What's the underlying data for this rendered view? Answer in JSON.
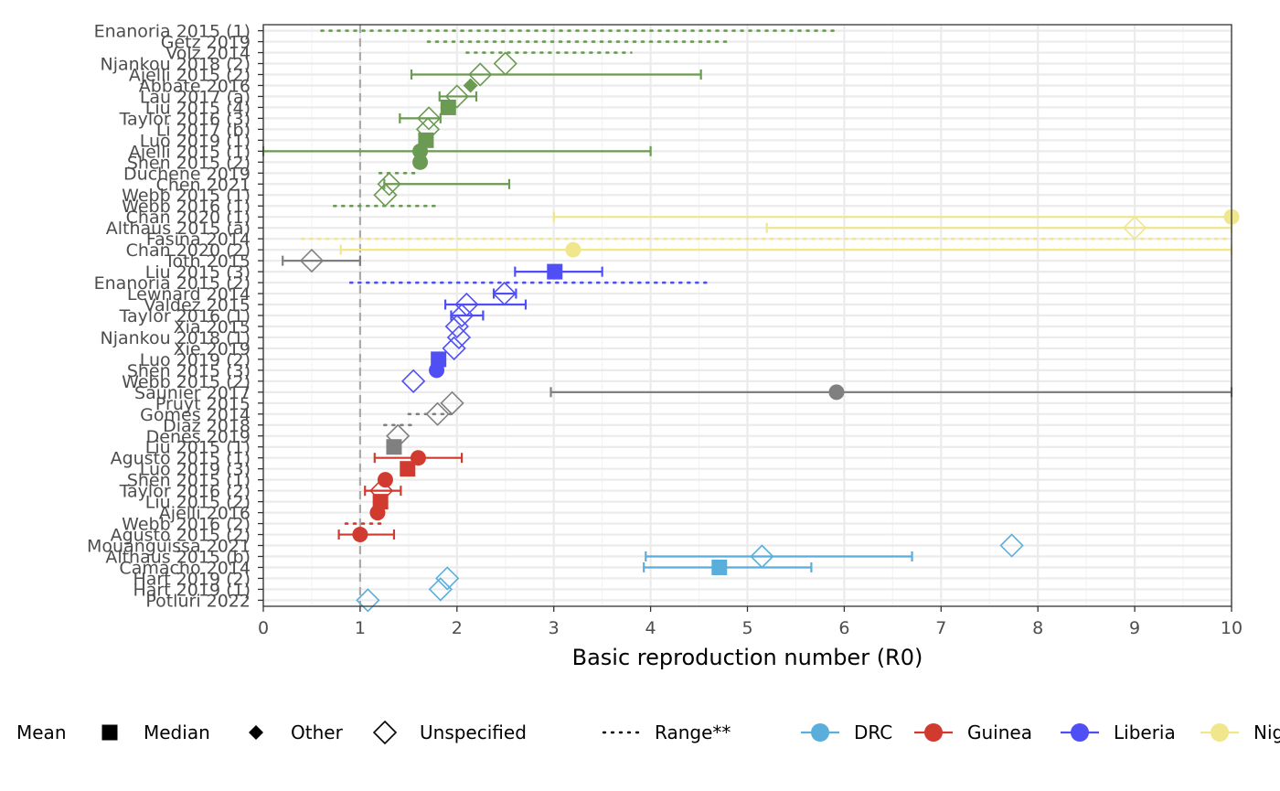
{
  "chart_data": {
    "type": "forest",
    "xlabel": "Basic reproduction number (R0)",
    "xlim": [
      0,
      10
    ],
    "x_ticks": [
      0,
      1,
      2,
      3,
      4,
      5,
      6,
      7,
      8,
      9,
      10
    ],
    "reference_line": 1,
    "grid": true,
    "legend_position": "bottom",
    "colors": {
      "DRC": "#5aaedc",
      "Guinea": "#d13b2f",
      "Liberia": "#4f4ff5",
      "Nigeria": "#f0e68c",
      "Sierra Leone": "#6b9a52",
      "Other": "#808080"
    },
    "legend": {
      "types": [
        {
          "label": "Mean",
          "symbol": "circle"
        },
        {
          "label": "Median",
          "symbol": "square"
        },
        {
          "label": "Other",
          "symbol": "diamond-filled"
        },
        {
          "label": "Unspecified",
          "symbol": "diamond-open"
        }
      ],
      "range_label": "Range**",
      "countries": [
        {
          "label": "DRC",
          "color": "#5aaedc"
        },
        {
          "label": "Guinea",
          "color": "#d13b2f"
        },
        {
          "label": "Liberia",
          "color": "#4f4ff5"
        },
        {
          "label": "Nig",
          "color": "#f0e68c"
        }
      ]
    },
    "studies": [
      {
        "label": "Enanoria 2015 (1)",
        "group": "Sierra Leone",
        "value": null,
        "type": null,
        "low": 0.6,
        "high": 5.9,
        "interval": "range"
      },
      {
        "label": "Getz 2019",
        "group": "Sierra Leone",
        "value": null,
        "type": null,
        "low": 1.7,
        "high": 4.8,
        "interval": "range"
      },
      {
        "label": "Volz 2014",
        "group": "Sierra Leone",
        "value": null,
        "type": null,
        "low": 2.1,
        "high": 3.8,
        "interval": "range"
      },
      {
        "label": "Njankou 2018 (2)",
        "group": "Sierra Leone",
        "value": 2.5,
        "type": "unspecified",
        "low": null,
        "high": null,
        "interval": null
      },
      {
        "label": "Ajelli 2015 (2)",
        "group": "Sierra Leone",
        "value": 2.24,
        "type": "unspecified",
        "low": 1.53,
        "high": 4.52,
        "interval": "ci"
      },
      {
        "label": "Abbate 2016",
        "group": "Sierra Leone",
        "value": 2.14,
        "type": "other",
        "low": null,
        "high": null,
        "interval": null
      },
      {
        "label": "Lau 2017 (a)",
        "group": "Sierra Leone",
        "value": 2.0,
        "type": "unspecified",
        "low": 1.82,
        "high": 2.2,
        "interval": "ci"
      },
      {
        "label": "Liu 2015 (4)",
        "group": "Sierra Leone",
        "value": 1.91,
        "type": "median",
        "low": null,
        "high": null,
        "interval": null
      },
      {
        "label": "Taylor 2016 (3)",
        "group": "Sierra Leone",
        "value": 1.71,
        "type": "unspecified",
        "low": 1.41,
        "high": 1.83,
        "interval": "ci"
      },
      {
        "label": "Li 2017 (b)",
        "group": "Sierra Leone",
        "value": 1.7,
        "type": "unspecified",
        "low": null,
        "high": null,
        "interval": null
      },
      {
        "label": "Luo 2019 (1)",
        "group": "Sierra Leone",
        "value": 1.68,
        "type": "median",
        "low": null,
        "high": null,
        "interval": null
      },
      {
        "label": "Ajelli 2015 (1)",
        "group": "Sierra Leone",
        "value": 1.62,
        "type": "mean",
        "low": 0.0,
        "high": 4.0,
        "interval": "ci"
      },
      {
        "label": "Shen 2015 (2)",
        "group": "Sierra Leone",
        "value": 1.62,
        "type": "mean",
        "low": null,
        "high": null,
        "interval": null
      },
      {
        "label": "Duchene 2019",
        "group": "Sierra Leone",
        "value": null,
        "type": null,
        "low": 1.2,
        "high": 1.6,
        "interval": "range"
      },
      {
        "label": "Chen 2021",
        "group": "Sierra Leone",
        "value": 1.3,
        "type": "unspecified",
        "low": 1.25,
        "high": 2.54,
        "interval": "ci"
      },
      {
        "label": "Webb 2015 (1)",
        "group": "Sierra Leone",
        "value": 1.26,
        "type": "unspecified",
        "low": null,
        "high": null,
        "interval": null
      },
      {
        "label": "Webb 2016 (1)",
        "group": "Sierra Leone",
        "value": null,
        "type": null,
        "low": 0.73,
        "high": 1.77,
        "interval": "range"
      },
      {
        "label": "Chan 2020 (1)",
        "group": "Nigeria",
        "value": 10.0,
        "type": "mean",
        "low": 3.0,
        "high": 10.0,
        "interval": "ci"
      },
      {
        "label": "Althaus 2015 (a)",
        "group": "Nigeria",
        "value": 9.0,
        "type": "unspecified",
        "low": 5.2,
        "high": 10.0,
        "interval": "ci"
      },
      {
        "label": "Fasina 2014",
        "group": "Nigeria",
        "value": null,
        "type": null,
        "low": 0.4,
        "high": 10.0,
        "interval": "range"
      },
      {
        "label": "Chan 2020 (2)",
        "group": "Nigeria",
        "value": 3.2,
        "type": "mean",
        "low": 0.8,
        "high": 10.0,
        "interval": "ci"
      },
      {
        "label": "Toth 2015",
        "group": "Other",
        "value": 0.5,
        "type": "unspecified",
        "low": 0.2,
        "high": 1.0,
        "interval": "ci"
      },
      {
        "label": "Liu 2015 (3)",
        "group": "Liberia",
        "value": 3.01,
        "type": "median",
        "low": 2.6,
        "high": 3.5,
        "interval": "ci"
      },
      {
        "label": "Enanoria 2015 (2)",
        "group": "Liberia",
        "value": null,
        "type": null,
        "low": 0.9,
        "high": 4.6,
        "interval": "range"
      },
      {
        "label": "Lewnard 2014",
        "group": "Liberia",
        "value": 2.49,
        "type": "unspecified",
        "low": 2.38,
        "high": 2.61,
        "interval": "ci"
      },
      {
        "label": "Valdez 2015",
        "group": "Liberia",
        "value": 2.1,
        "type": "unspecified",
        "low": 1.88,
        "high": 2.71,
        "interval": "ci"
      },
      {
        "label": "Taylor 2016 (1)",
        "group": "Liberia",
        "value": 2.05,
        "type": "unspecified",
        "low": 1.94,
        "high": 2.27,
        "interval": "ci"
      },
      {
        "label": "Xia 2015",
        "group": "Liberia",
        "value": 2.0,
        "type": "unspecified",
        "low": null,
        "high": null,
        "interval": null
      },
      {
        "label": "Njankou 2018 (1)",
        "group": "Liberia",
        "value": 2.02,
        "type": "unspecified",
        "low": null,
        "high": null,
        "interval": null
      },
      {
        "label": "Xie 2019",
        "group": "Liberia",
        "value": 1.97,
        "type": "unspecified",
        "low": null,
        "high": null,
        "interval": null
      },
      {
        "label": "Luo 2019 (2)",
        "group": "Liberia",
        "value": 1.81,
        "type": "median",
        "low": null,
        "high": null,
        "interval": null
      },
      {
        "label": "Shen 2015 (3)",
        "group": "Liberia",
        "value": 1.79,
        "type": "mean",
        "low": null,
        "high": null,
        "interval": null
      },
      {
        "label": "Webb 2015 (2)",
        "group": "Liberia",
        "value": 1.55,
        "type": "unspecified",
        "low": null,
        "high": null,
        "interval": null
      },
      {
        "label": "Saunier 2017",
        "group": "Other",
        "value": 5.92,
        "type": "mean",
        "low": 2.97,
        "high": 10.0,
        "interval": "ci"
      },
      {
        "label": "Pruyt 2015",
        "group": "Other",
        "value": 1.95,
        "type": "unspecified",
        "low": null,
        "high": null,
        "interval": null
      },
      {
        "label": "Gomes 2014",
        "group": "Other",
        "value": 1.8,
        "type": "unspecified",
        "low": 1.5,
        "high": 2.0,
        "interval": "range"
      },
      {
        "label": "Diaz 2018",
        "group": "Other",
        "value": null,
        "type": null,
        "low": 1.25,
        "high": 1.55,
        "interval": "range"
      },
      {
        "label": "Denes 2019",
        "group": "Other",
        "value": 1.39,
        "type": "unspecified",
        "low": null,
        "high": null,
        "interval": null
      },
      {
        "label": "Liu 2015 (1)",
        "group": "Other",
        "value": 1.35,
        "type": "median",
        "low": null,
        "high": null,
        "interval": null
      },
      {
        "label": "Agusto 2015 (1)",
        "group": "Guinea",
        "value": 1.6,
        "type": "mean",
        "low": 1.15,
        "high": 2.05,
        "interval": "ci"
      },
      {
        "label": "Luo 2019 (3)",
        "group": "Guinea",
        "value": 1.49,
        "type": "median",
        "low": null,
        "high": null,
        "interval": null
      },
      {
        "label": "Shen 2015 (1)",
        "group": "Guinea",
        "value": 1.26,
        "type": "mean",
        "low": null,
        "high": null,
        "interval": null
      },
      {
        "label": "Taylor 2016 (2)",
        "group": "Guinea",
        "value": 1.22,
        "type": "unspecified",
        "low": 1.05,
        "high": 1.42,
        "interval": "ci"
      },
      {
        "label": "Liu 2015 (2)",
        "group": "Guinea",
        "value": 1.21,
        "type": "median",
        "low": null,
        "high": null,
        "interval": null
      },
      {
        "label": "Ajelli 2016",
        "group": "Guinea",
        "value": 1.18,
        "type": "mean",
        "low": null,
        "high": null,
        "interval": null
      },
      {
        "label": "Webb 2016 (2)",
        "group": "Guinea",
        "value": null,
        "type": null,
        "low": 0.85,
        "high": 1.22,
        "interval": "range"
      },
      {
        "label": "Agusto 2015 (2)",
        "group": "Guinea",
        "value": 1.0,
        "type": "mean",
        "low": 0.78,
        "high": 1.35,
        "interval": "ci"
      },
      {
        "label": "Mouanguissa 2021",
        "group": "DRC",
        "value": 7.73,
        "type": "unspecified",
        "low": null,
        "high": null,
        "interval": null
      },
      {
        "label": "Althaus 2015 (b)",
        "group": "DRC",
        "value": 5.15,
        "type": "unspecified",
        "low": 3.95,
        "high": 6.7,
        "interval": "ci"
      },
      {
        "label": "Camacho 2014",
        "group": "DRC",
        "value": 4.71,
        "type": "median",
        "low": 3.93,
        "high": 5.66,
        "interval": "ci"
      },
      {
        "label": "Hart 2019 (2)",
        "group": "DRC",
        "value": 1.9,
        "type": "unspecified",
        "low": null,
        "high": null,
        "interval": null
      },
      {
        "label": "Hart 2019 (1)",
        "group": "DRC",
        "value": 1.83,
        "type": "unspecified",
        "low": null,
        "high": null,
        "interval": null
      },
      {
        "label": "Potluri 2022",
        "group": "DRC",
        "value": 1.08,
        "type": "unspecified",
        "low": null,
        "high": null,
        "interval": null
      }
    ]
  }
}
